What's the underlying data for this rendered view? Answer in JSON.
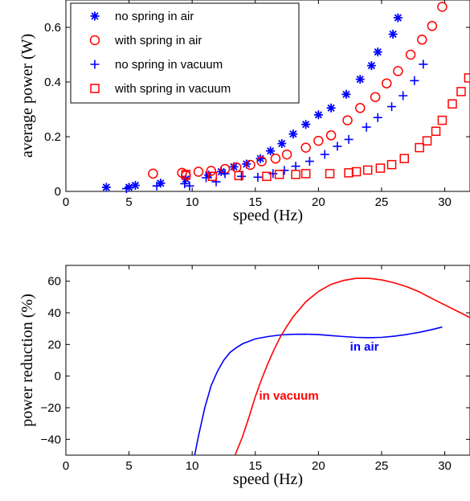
{
  "colors": {
    "blue": "#0000ff",
    "red": "#ff0000",
    "axis": "#000000"
  },
  "chart_data": [
    {
      "type": "scatter",
      "xlabel": "speed (Hz)",
      "ylabel": "average power (W)",
      "xlim": [
        0,
        32
      ],
      "ylim": [
        0,
        0.7
      ],
      "x_ticks": [
        0,
        5,
        10,
        15,
        20,
        25,
        30
      ],
      "y_ticks": [
        0,
        0.2,
        0.4,
        0.6
      ],
      "y_tick_labels": [
        "0",
        "0.2",
        "0.4",
        "0.6"
      ],
      "grid": false,
      "legend_position": "top-left",
      "series": [
        {
          "name": "no spring in air",
          "marker": "asterisk",
          "color": "#0000ff",
          "points": [
            [
              3.2,
              0.015
            ],
            [
              5.0,
              0.015
            ],
            [
              5.5,
              0.022
            ],
            [
              7.5,
              0.03
            ],
            [
              9.5,
              0.045
            ],
            [
              11.3,
              0.06
            ],
            [
              12.3,
              0.072
            ],
            [
              13.3,
              0.09
            ],
            [
              14.3,
              0.1
            ],
            [
              15.4,
              0.12
            ],
            [
              16.2,
              0.148
            ],
            [
              17.1,
              0.175
            ],
            [
              18.0,
              0.21
            ],
            [
              19.0,
              0.245
            ],
            [
              20.0,
              0.28
            ],
            [
              21.0,
              0.305
            ],
            [
              22.2,
              0.355
            ],
            [
              23.3,
              0.41
            ],
            [
              24.2,
              0.46
            ],
            [
              24.7,
              0.51
            ],
            [
              25.9,
              0.575
            ],
            [
              26.3,
              0.635
            ]
          ]
        },
        {
          "name": "with spring in air",
          "marker": "circle",
          "color": "#ff0000",
          "points": [
            [
              6.9,
              0.065
            ],
            [
              9.2,
              0.068
            ],
            [
              9.5,
              0.058
            ],
            [
              10.5,
              0.072
            ],
            [
              11.5,
              0.075
            ],
            [
              12.6,
              0.082
            ],
            [
              13.5,
              0.088
            ],
            [
              14.6,
              0.097
            ],
            [
              15.5,
              0.11
            ],
            [
              16.6,
              0.12
            ],
            [
              17.5,
              0.135
            ],
            [
              19.0,
              0.16
            ],
            [
              20.0,
              0.185
            ],
            [
              21.0,
              0.205
            ],
            [
              22.3,
              0.26
            ],
            [
              23.3,
              0.305
            ],
            [
              24.5,
              0.345
            ],
            [
              25.4,
              0.395
            ],
            [
              26.3,
              0.44
            ],
            [
              27.3,
              0.5
            ],
            [
              28.2,
              0.555
            ],
            [
              29.0,
              0.605
            ],
            [
              29.8,
              0.675
            ],
            [
              31.2,
              0.73
            ]
          ]
        },
        {
          "name": "no spring in vacuum",
          "marker": "plus",
          "color": "#0000ff",
          "points": [
            [
              4.8,
              0.01
            ],
            [
              7.2,
              0.02
            ],
            [
              9.4,
              0.028
            ],
            [
              9.8,
              0.02
            ],
            [
              11.1,
              0.05
            ],
            [
              11.9,
              0.035
            ],
            [
              12.6,
              0.065
            ],
            [
              13.9,
              0.055
            ],
            [
              15.2,
              0.052
            ],
            [
              16.4,
              0.065
            ],
            [
              17.3,
              0.077
            ],
            [
              18.2,
              0.092
            ],
            [
              19.3,
              0.11
            ],
            [
              20.5,
              0.135
            ],
            [
              21.5,
              0.165
            ],
            [
              22.4,
              0.19
            ],
            [
              23.8,
              0.235
            ],
            [
              24.7,
              0.27
            ],
            [
              25.8,
              0.31
            ],
            [
              26.7,
              0.35
            ],
            [
              27.6,
              0.405
            ],
            [
              28.3,
              0.465
            ]
          ]
        },
        {
          "name": "with spring in vacuum",
          "marker": "square",
          "color": "#ff0000",
          "points": [
            [
              9.5,
              0.062
            ],
            [
              11.6,
              0.055
            ],
            [
              13.7,
              0.058
            ],
            [
              15.9,
              0.055
            ],
            [
              16.9,
              0.062
            ],
            [
              18.2,
              0.062
            ],
            [
              19.0,
              0.065
            ],
            [
              20.9,
              0.065
            ],
            [
              22.4,
              0.068
            ],
            [
              23.0,
              0.072
            ],
            [
              23.9,
              0.078
            ],
            [
              24.9,
              0.085
            ],
            [
              25.8,
              0.098
            ],
            [
              26.8,
              0.12
            ],
            [
              28.0,
              0.16
            ],
            [
              28.6,
              0.185
            ],
            [
              29.3,
              0.22
            ],
            [
              29.8,
              0.26
            ],
            [
              30.6,
              0.32
            ],
            [
              31.3,
              0.365
            ],
            [
              31.9,
              0.415
            ]
          ]
        }
      ]
    },
    {
      "type": "line",
      "xlabel": "speed (Hz)",
      "ylabel": "power reduction (%)",
      "xlim": [
        0,
        32
      ],
      "ylim": [
        -50,
        70
      ],
      "x_ticks": [
        0,
        5,
        10,
        15,
        20,
        25,
        30
      ],
      "y_ticks": [
        -40,
        -20,
        0,
        20,
        40,
        60
      ],
      "y_tick_labels": [
        "−40",
        "−20",
        "0",
        "20",
        "40",
        "60"
      ],
      "grid": false,
      "annotations": [
        {
          "text": "in air",
          "x": 22.5,
          "y": 16,
          "color": "#0000ff"
        },
        {
          "text": "in vacuum",
          "x": 15.3,
          "y": -15,
          "color": "#ff0000"
        }
      ],
      "series": [
        {
          "name": "in air",
          "color": "#0000ff",
          "points": [
            [
              10.2,
              -50
            ],
            [
              10.5,
              -38
            ],
            [
              11.0,
              -20
            ],
            [
              11.5,
              -6
            ],
            [
              12.0,
              3
            ],
            [
              12.5,
              10
            ],
            [
              13.0,
              15
            ],
            [
              13.5,
              18
            ],
            [
              14.0,
              20.5
            ],
            [
              15.0,
              23.5
            ],
            [
              16.0,
              25
            ],
            [
              17.0,
              26
            ],
            [
              18.0,
              26.4
            ],
            [
              19.0,
              26.5
            ],
            [
              20.0,
              26.2
            ],
            [
              21.0,
              25.6
            ],
            [
              22.0,
              25
            ],
            [
              23.0,
              24.5
            ],
            [
              24.0,
              24.3
            ],
            [
              25.0,
              24.5
            ],
            [
              26.0,
              25.2
            ],
            [
              27.0,
              26.3
            ],
            [
              28.0,
              27.7
            ],
            [
              29.0,
              29.4
            ],
            [
              29.8,
              31
            ]
          ]
        },
        {
          "name": "in vacuum",
          "color": "#ff0000",
          "points": [
            [
              13.4,
              -50
            ],
            [
              14.0,
              -38
            ],
            [
              14.5,
              -26
            ],
            [
              15.0,
              -13
            ],
            [
              15.5,
              -2
            ],
            [
              16.0,
              8
            ],
            [
              16.5,
              17
            ],
            [
              17.0,
              25
            ],
            [
              17.5,
              31.5
            ],
            [
              18.0,
              37.5
            ],
            [
              19.0,
              47
            ],
            [
              20.0,
              53.5
            ],
            [
              21.0,
              58
            ],
            [
              22.0,
              60.5
            ],
            [
              23.0,
              61.8
            ],
            [
              24.0,
              61.8
            ],
            [
              25.0,
              60.8
            ],
            [
              26.0,
              59
            ],
            [
              27.0,
              56.5
            ],
            [
              28.0,
              53.2
            ],
            [
              29.0,
              49
            ],
            [
              30.0,
              45
            ],
            [
              31.0,
              41
            ],
            [
              32.0,
              37
            ]
          ]
        }
      ]
    }
  ]
}
